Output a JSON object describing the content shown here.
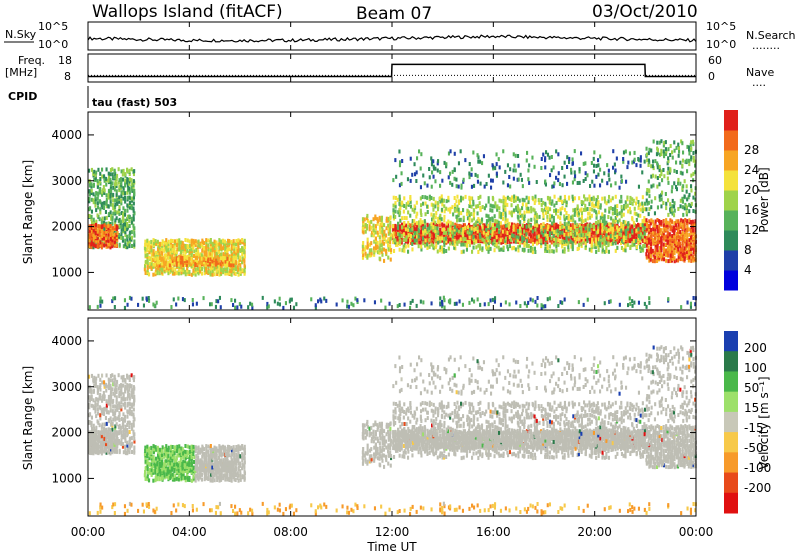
{
  "header": {
    "station": "Wallops Island (fitACF)",
    "beam": "Beam 07",
    "date": "03/Oct/2010"
  },
  "strip_labels": {
    "nsky": "N.Sky",
    "nsearch": "N.Search",
    "nsearch_dots": "........",
    "freq": "Freq.",
    "freq_unit": "[MHz]",
    "nave": "Nave",
    "nave_dots": "....",
    "cpid": "CPID",
    "cpid_value": "tau (fast) 503"
  },
  "noise_axis": {
    "left": [
      "10^5",
      "10^0"
    ],
    "right": [
      "10^5",
      "10^0"
    ]
  },
  "freq_axis": {
    "left": [
      "18",
      "8"
    ],
    "right": [
      "60",
      "0"
    ]
  },
  "colors": {
    "power": [
      "#0000dd",
      "#1f3fa8",
      "#2e8a5a",
      "#57b25a",
      "#9fd34a",
      "#f4e23c",
      "#f7a523",
      "#f26a1b",
      "#e0201a"
    ],
    "velocity": [
      "#1a3fb0",
      "#2a7a4a",
      "#4ab84a",
      "#9de06a",
      "#c8c8b8",
      "#f7c94a",
      "#f79a2a",
      "#e84a1a",
      "#e01010"
    ],
    "groundscatter": "#bebeb4"
  },
  "chart_data": [
    {
      "type": "line",
      "title": "N.Sky / N.Search noise",
      "x": [
        "00:00",
        "02:00",
        "04:00",
        "06:00",
        "08:00",
        "10:00",
        "12:00",
        "14:00",
        "16:00",
        "18:00",
        "20:00",
        "22:00",
        "24:00"
      ],
      "series": [
        {
          "name": "N.Sky",
          "values": [
            10,
            9,
            8,
            8,
            8,
            9,
            10,
            11,
            12,
            11,
            10,
            9,
            8
          ]
        }
      ]
    },
    {
      "type": "line",
      "title": "Freq. [MHz] / Nave",
      "x": [
        "00:00",
        "11:59",
        "12:00",
        "21:59",
        "22:00",
        "24:00"
      ],
      "series": [
        {
          "name": "Freq.",
          "values": [
            10.5,
            10.5,
            16.0,
            16.0,
            10.5,
            10.5
          ]
        },
        {
          "name": "Nave",
          "values": [
            18,
            18,
            18,
            18,
            18,
            18
          ]
        }
      ]
    },
    {
      "type": "heatmap",
      "title": "Power [dB]",
      "xlabel": "Time UT",
      "ylabel": "Slant Range [km]",
      "xlim": [
        "00:00",
        "24:00"
      ],
      "ylim": [
        180,
        4500
      ],
      "colorbar_ticks": [
        4,
        8,
        12,
        16,
        20,
        24,
        28
      ],
      "colorbar_label": "Power [dB]"
    },
    {
      "type": "heatmap",
      "title": "Velocity [m s^-1]",
      "xlabel": "Time UT",
      "ylabel": "Slant Range [km]",
      "xlim": [
        "00:00",
        "24:00"
      ],
      "ylim": [
        180,
        4500
      ],
      "colorbar_ticks": [
        200,
        100,
        50,
        15,
        -15,
        -50,
        -100,
        -200
      ],
      "colorbar_label": "Velocity [m s⁻¹]"
    }
  ],
  "axes": {
    "range_ticks": [
      "1000",
      "2000",
      "3000",
      "4000"
    ],
    "time_ticks": [
      "00:00",
      "04:00",
      "08:00",
      "12:00",
      "16:00",
      "20:00",
      "00:00"
    ],
    "ylabel": "Slant Range [km]",
    "xlabel": "Time UT",
    "power_label": "Power [dB]",
    "velocity_label": "Velocity [m s⁻¹]"
  }
}
